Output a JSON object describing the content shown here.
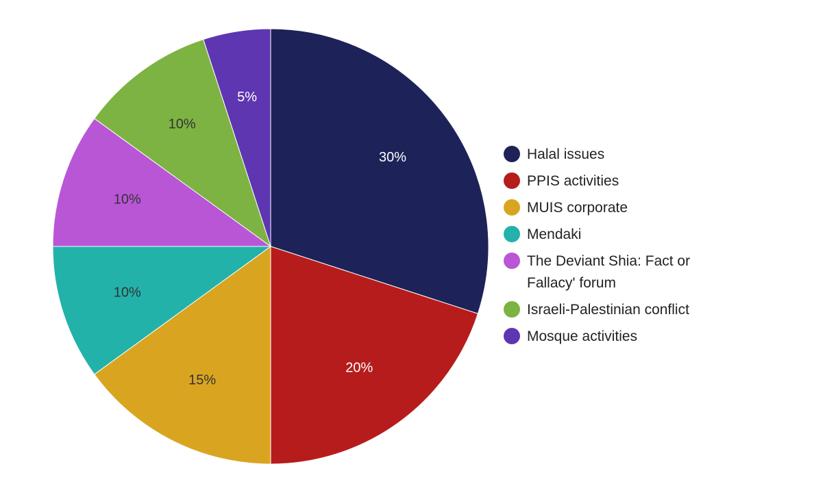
{
  "chart_data": {
    "type": "pie",
    "categories": [
      "Halal issues",
      "PPIS activities",
      "MUIS corporate",
      "Mendaki",
      "The Deviant Shia: Fact or Fallacy' forum",
      "Israeli-Palestinian conflict",
      "Mosque activities"
    ],
    "values": [
      30,
      20,
      15,
      10,
      10,
      10,
      5
    ],
    "data_labels": [
      "30%",
      "20%",
      "15%",
      "10%",
      "10%",
      "10%",
      "5%"
    ],
    "colors": [
      "#1d2359",
      "#b71c1c",
      "#d9a521",
      "#22b2aa",
      "#b956d6",
      "#7db343",
      "#5e36b1"
    ],
    "label_colors": [
      "#ffffff",
      "#ffffff",
      "#333333",
      "#333333",
      "#333333",
      "#333333",
      "#ffffff"
    ],
    "title": "",
    "legend_position": "right",
    "start_angle": "top, clockwise"
  }
}
